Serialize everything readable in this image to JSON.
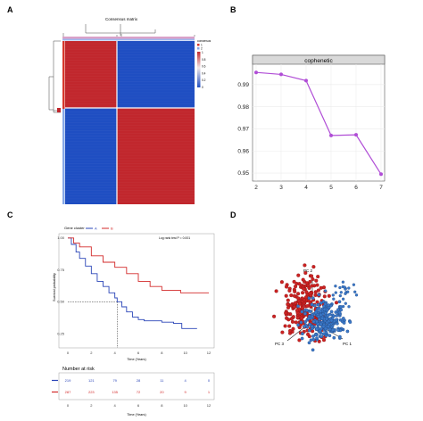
{
  "panels": {
    "a": "A",
    "b": "B",
    "c": "C",
    "d": "D"
  },
  "chart_data": [
    {
      "id": "A",
      "type": "heatmap",
      "title": "Consensus matrix",
      "legend_title": "consensus",
      "legend_ticks": [
        "1",
        "0.8",
        "0.6",
        "0.4",
        "0.2",
        "0"
      ],
      "cluster_labels": [
        "1",
        "2"
      ],
      "matrix": [
        [
          1,
          0
        ],
        [
          0,
          1
        ]
      ],
      "block_fraction": 0.4,
      "colors": {
        "high": "#c1272d",
        "low": "#1f4ec2",
        "cluster1": "#d6362b",
        "cluster2": "#87a9e8"
      }
    },
    {
      "id": "B",
      "type": "line",
      "title": "cophenetic",
      "x": [
        2,
        3,
        4,
        5,
        6,
        7
      ],
      "y": [
        0.9955,
        0.9946,
        0.9918,
        0.967,
        0.9673,
        0.9495
      ],
      "xlim": [
        2,
        7
      ],
      "ylim": [
        0.948,
        0.998
      ],
      "yticks": [
        0.95,
        0.96,
        0.97,
        0.98,
        0.99
      ],
      "grid": true,
      "color": "#b04dd6"
    },
    {
      "id": "C",
      "type": "line",
      "title": "",
      "legend_title": "Gene cluster",
      "xlabel": "Time (Years)",
      "ylabel": "Survival probability",
      "annotation": "Log rank test P = 0.001",
      "xticks": [
        0,
        2,
        4,
        6,
        8,
        10,
        12
      ],
      "yticks": [
        0.25,
        0.5,
        0.75,
        1.0
      ],
      "xlim": [
        0,
        12
      ],
      "ylim": [
        0.18,
        1.02
      ],
      "median_time": 4.2,
      "series": [
        {
          "name": "A",
          "color": "#2a45b8",
          "x": [
            0,
            0.3,
            0.7,
            1,
            1.5,
            2,
            2.5,
            3,
            3.5,
            4,
            4.2,
            4.6,
            5,
            5.5,
            6,
            6.5,
            7,
            8,
            9,
            9.6,
            9.7,
            11
          ],
          "y": [
            1.0,
            0.95,
            0.89,
            0.84,
            0.78,
            0.72,
            0.66,
            0.62,
            0.57,
            0.53,
            0.5,
            0.46,
            0.42,
            0.38,
            0.36,
            0.35,
            0.35,
            0.34,
            0.33,
            0.33,
            0.29,
            0.29
          ]
        },
        {
          "name": "B",
          "color": "#d32a2a",
          "x": [
            0,
            0.5,
            1,
            2,
            3,
            4,
            5,
            6,
            7,
            8,
            9,
            9.5,
            9.6,
            12
          ],
          "y": [
            1.0,
            0.96,
            0.93,
            0.86,
            0.81,
            0.77,
            0.72,
            0.66,
            0.62,
            0.59,
            0.59,
            0.59,
            0.57,
            0.57
          ]
        }
      ],
      "risk_table": {
        "title": "Number at risk",
        "xlabel": "Time (Years)",
        "xticks": [
          0,
          2,
          4,
          6,
          8,
          10,
          12
        ],
        "rows": [
          {
            "name": "A",
            "color": "#2a45b8",
            "values": [
              "219",
              "121",
              "79",
              "28",
              "11",
              "4",
              "0"
            ]
          },
          {
            "name": "B",
            "color": "#d32a2a",
            "values": [
              "287",
              "223",
              "135",
              "72",
              "20",
              "9",
              "1"
            ]
          }
        ]
      }
    },
    {
      "id": "D",
      "type": "scatter",
      "axes": [
        "PC 1",
        "PC 2",
        "PC 3"
      ],
      "series": [
        {
          "name": "cluster-red",
          "color": "#cc2222"
        },
        {
          "name": "cluster-blue",
          "color": "#3a78c9"
        }
      ]
    }
  ]
}
